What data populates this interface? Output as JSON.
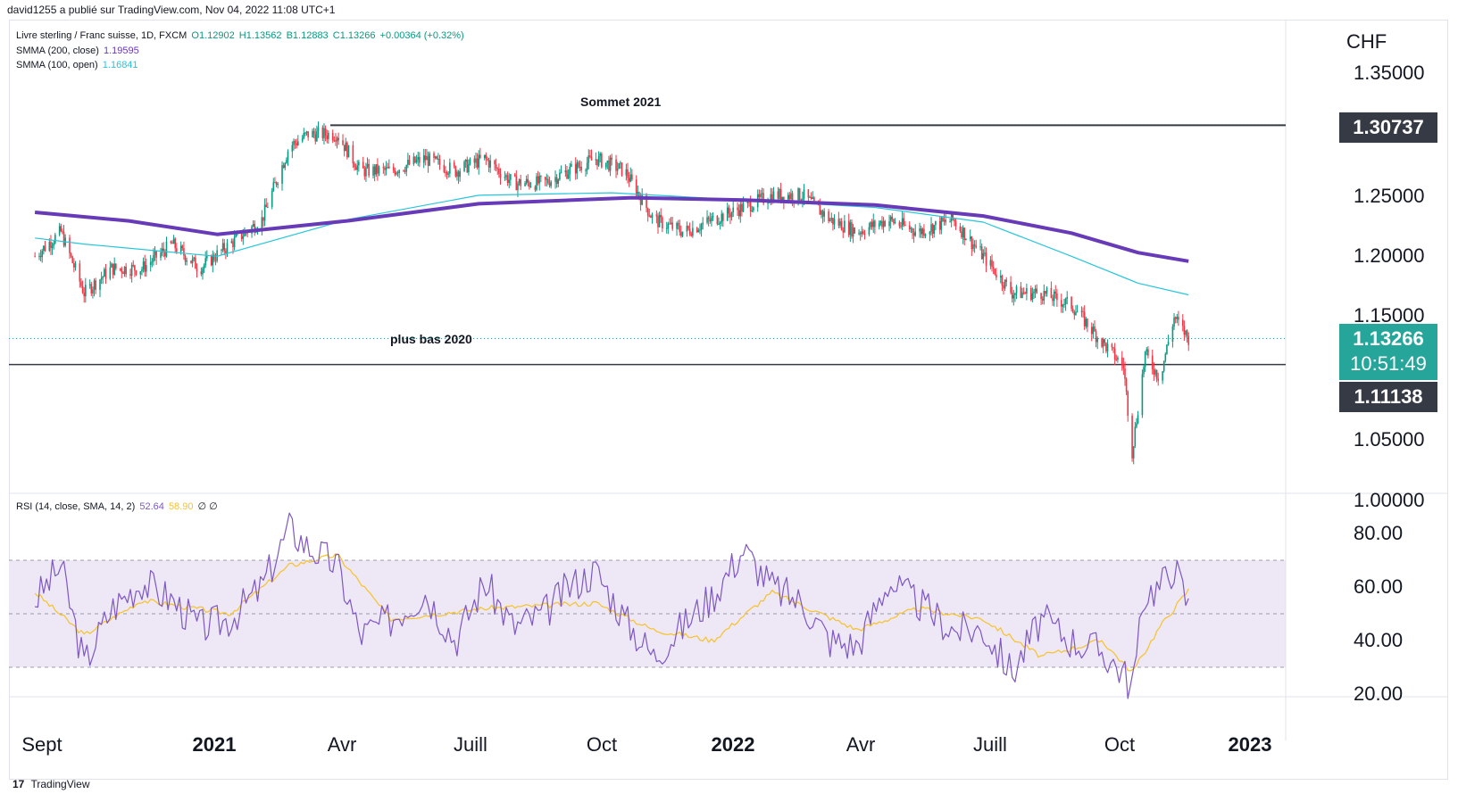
{
  "header": {
    "publisher": "david1255 a publié sur TradingView.com, Nov 04, 2022 11:08 UTC+1"
  },
  "legend": {
    "symbol": "Livre sterling / Franc suisse, 1D, FXCM",
    "o": "O1.12902",
    "h": "H1.13562",
    "b": "B1.12883",
    "c": "C1.13266",
    "chg": "+0.00364 (+0.32%)",
    "smma200_label": "SMMA (200, close)",
    "smma200_val": "1.19595",
    "smma100_label": "SMMA (100, open)",
    "smma100_val": "1.16841",
    "rsi_label": "RSI (14, close, SMA, 14, 2)",
    "rsi_val": "52.64",
    "rsi_sma_val": "58.90",
    "rsi_extra": "∅ ∅"
  },
  "price_axis": {
    "currency": "CHF",
    "ticks": [
      "1.35000",
      "1.25000",
      "1.20000",
      "1.15000",
      "1.05000",
      "1.00000"
    ],
    "current_price": "1.13266",
    "countdown": "10:51:49",
    "level_high": "1.30737",
    "level_low": "1.11138"
  },
  "rsi_axis": {
    "ticks": [
      "80.00",
      "60.00",
      "40.00",
      "20.00"
    ]
  },
  "time_axis": [
    {
      "label": "Sept",
      "year": false
    },
    {
      "label": "2021",
      "year": true
    },
    {
      "label": "Avr",
      "year": false
    },
    {
      "label": "Juill",
      "year": false
    },
    {
      "label": "Oct",
      "year": false
    },
    {
      "label": "2022",
      "year": true
    },
    {
      "label": "Avr",
      "year": false
    },
    {
      "label": "Juill",
      "year": false
    },
    {
      "label": "Oct",
      "year": false
    },
    {
      "label": "2023",
      "year": true
    }
  ],
  "annotations": {
    "top": "Sommet 2021",
    "bottom": "plus bas 2020"
  },
  "footer": {
    "brand": "TradingView",
    "brand_mark": "17"
  },
  "colors": {
    "up": "#089981",
    "down": "#f23645",
    "smma200": "#673ab7",
    "smma100": "#26c6da",
    "rsi": "#7e57c2",
    "rsi_sma": "#f7c325",
    "rsi_band": "#ede7f6",
    "level": "#363a45",
    "price_tag": "#26a69a"
  },
  "chart_data": [
    {
      "type": "candlestick",
      "title": "Livre sterling / Franc suisse, 1D, FXCM",
      "ylabel": "CHF",
      "ylim": [
        1.0,
        1.37
      ],
      "horizontal_levels": [
        {
          "label": "Sommet 2021",
          "value": 1.30737
        },
        {
          "label": "plus bas 2020",
          "value": 1.11138
        }
      ],
      "close_path": {
        "x": [
          "2020-08-28",
          "2020-09-15",
          "2020-10-01",
          "2020-10-20",
          "2020-11-10",
          "2020-12-01",
          "2020-12-20",
          "2021-01-10",
          "2021-02-01",
          "2021-02-20",
          "2021-03-05",
          "2021-03-25",
          "2021-04-10",
          "2021-05-01",
          "2021-05-25",
          "2021-06-15",
          "2021-07-05",
          "2021-07-25",
          "2021-08-15",
          "2021-09-01",
          "2021-09-20",
          "2021-10-10",
          "2021-10-30",
          "2021-11-20",
          "2021-12-10",
          "2021-12-31",
          "2022-01-20",
          "2022-02-10",
          "2022-03-01",
          "2022-03-20",
          "2022-04-10",
          "2022-05-01",
          "2022-05-25",
          "2022-06-15",
          "2022-07-05",
          "2022-07-25",
          "2022-08-15",
          "2022-09-05",
          "2022-09-20",
          "2022-09-26",
          "2022-10-05",
          "2022-10-15",
          "2022-10-25",
          "2022-11-04"
        ],
        "close": [
          1.2,
          1.22,
          1.17,
          1.19,
          1.19,
          1.21,
          1.19,
          1.21,
          1.23,
          1.29,
          1.3,
          1.3,
          1.27,
          1.27,
          1.28,
          1.27,
          1.28,
          1.26,
          1.26,
          1.27,
          1.28,
          1.27,
          1.23,
          1.22,
          1.23,
          1.24,
          1.25,
          1.25,
          1.23,
          1.22,
          1.23,
          1.22,
          1.23,
          1.2,
          1.17,
          1.17,
          1.16,
          1.13,
          1.11,
          1.04,
          1.12,
          1.1,
          1.15,
          1.13266
        ]
      },
      "series": [
        {
          "name": "SMMA (200, close)",
          "last": 1.19595,
          "x": [
            "2020-08-28",
            "2020-11-01",
            "2021-01-01",
            "2021-04-01",
            "2021-07-01",
            "2021-10-15",
            "2022-01-01",
            "2022-04-01",
            "2022-06-15",
            "2022-08-15",
            "2022-09-30",
            "2022-11-04"
          ],
          "values": [
            1.236,
            1.229,
            1.218,
            1.229,
            1.243,
            1.248,
            1.246,
            1.242,
            1.233,
            1.219,
            1.203,
            1.19595
          ]
        },
        {
          "name": "SMMA (100, open)",
          "last": 1.16841,
          "x": [
            "2020-08-28",
            "2020-10-01",
            "2021-01-01",
            "2021-04-01",
            "2021-07-01",
            "2021-10-01",
            "2022-01-01",
            "2022-04-01",
            "2022-06-15",
            "2022-08-15",
            "2022-09-30",
            "2022-11-04"
          ],
          "values": [
            1.215,
            1.21,
            1.2,
            1.23,
            1.25,
            1.252,
            1.246,
            1.24,
            1.228,
            1.2,
            1.178,
            1.16841
          ]
        }
      ]
    },
    {
      "type": "line",
      "title": "RSI (14, close, SMA, 14, 2)",
      "ylim": [
        15,
        90
      ],
      "bands": [
        30,
        70
      ],
      "midline": 50,
      "series": [
        {
          "name": "RSI",
          "last": 52.64,
          "x": [
            "2020-08-28",
            "2020-09-15",
            "2020-10-01",
            "2020-10-20",
            "2020-11-10",
            "2020-12-01",
            "2020-12-20",
            "2021-01-10",
            "2021-02-01",
            "2021-02-20",
            "2021-03-05",
            "2021-03-25",
            "2021-04-10",
            "2021-05-01",
            "2021-05-25",
            "2021-06-15",
            "2021-07-05",
            "2021-07-25",
            "2021-08-15",
            "2021-09-01",
            "2021-09-20",
            "2021-10-10",
            "2021-10-30",
            "2021-11-20",
            "2021-12-10",
            "2021-12-31",
            "2022-01-20",
            "2022-02-10",
            "2022-03-01",
            "2022-03-20",
            "2022-04-10",
            "2022-05-01",
            "2022-05-25",
            "2022-06-15",
            "2022-07-05",
            "2022-07-25",
            "2022-08-15",
            "2022-09-05",
            "2022-09-20",
            "2022-09-26",
            "2022-10-05",
            "2022-10-15",
            "2022-10-25",
            "2022-11-04"
          ],
          "values": [
            55,
            68,
            31,
            52,
            62,
            55,
            45,
            48,
            60,
            82,
            75,
            68,
            42,
            48,
            58,
            40,
            62,
            45,
            50,
            60,
            66,
            48,
            34,
            46,
            57,
            74,
            60,
            54,
            40,
            38,
            62,
            54,
            44,
            44,
            28,
            48,
            40,
            36,
            28,
            22,
            58,
            60,
            68,
            52.64
          ]
        },
        {
          "name": "RSI-based MA",
          "last": 58.9,
          "x": [
            "2020-08-28",
            "2020-10-01",
            "2020-11-10",
            "2021-01-10",
            "2021-02-20",
            "2021-03-25",
            "2021-05-01",
            "2021-07-05",
            "2021-09-20",
            "2021-10-30",
            "2021-12-10",
            "2022-01-20",
            "2022-03-20",
            "2022-05-01",
            "2022-06-15",
            "2022-07-25",
            "2022-09-05",
            "2022-09-26",
            "2022-10-15",
            "2022-11-04"
          ],
          "values": [
            58,
            42,
            55,
            50,
            68,
            72,
            48,
            52,
            54,
            44,
            40,
            58,
            44,
            52,
            48,
            34,
            40,
            28,
            45,
            58.9
          ]
        }
      ]
    }
  ]
}
